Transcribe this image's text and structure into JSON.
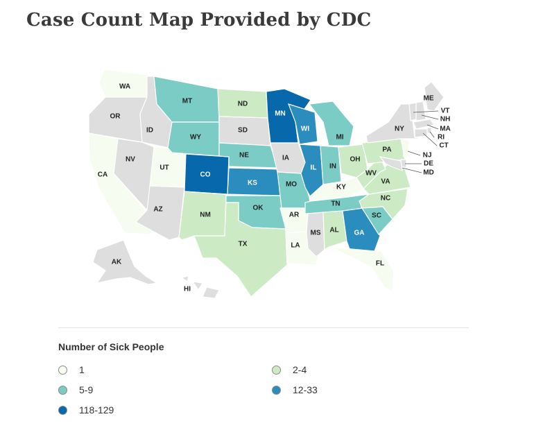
{
  "title": "Case Count Map Provided by CDC",
  "legend": {
    "title": "Number of Sick People",
    "items": [
      {
        "label": "1",
        "color": "#f7fcf0",
        "key": "c1"
      },
      {
        "label": "2-4",
        "color": "#ccebc5",
        "key": "c2"
      },
      {
        "label": "5-9",
        "color": "#7bccc4",
        "key": "c3"
      },
      {
        "label": "12-33",
        "color": "#2b8cbe",
        "key": "c4"
      },
      {
        "label": "118-129",
        "color": "#0868ac",
        "key": "c5"
      }
    ]
  },
  "no_data_color": "#dedede",
  "states": {
    "WA": {
      "label": "WA",
      "cls": "c1"
    },
    "OR": {
      "label": "OR",
      "cls": "none"
    },
    "CA": {
      "label": "CA",
      "cls": "c1"
    },
    "ID": {
      "label": "ID",
      "cls": "none"
    },
    "NV": {
      "label": "NV",
      "cls": "none"
    },
    "UT": {
      "label": "UT",
      "cls": "c1"
    },
    "AZ": {
      "label": "AZ",
      "cls": "none"
    },
    "MT": {
      "label": "MT",
      "cls": "c3"
    },
    "WY": {
      "label": "WY",
      "cls": "c3"
    },
    "CO": {
      "label": "CO",
      "cls": "c5"
    },
    "NM": {
      "label": "NM",
      "cls": "c2"
    },
    "ND": {
      "label": "ND",
      "cls": "c2"
    },
    "SD": {
      "label": "SD",
      "cls": "none"
    },
    "NE": {
      "label": "NE",
      "cls": "c3"
    },
    "KS": {
      "label": "KS",
      "cls": "c4"
    },
    "OK": {
      "label": "OK",
      "cls": "c3"
    },
    "TX": {
      "label": "TX",
      "cls": "c2"
    },
    "MN": {
      "label": "MN",
      "cls": "c5"
    },
    "IA": {
      "label": "IA",
      "cls": "none"
    },
    "MO": {
      "label": "MO",
      "cls": "c3"
    },
    "AR": {
      "label": "AR",
      "cls": "c1"
    },
    "LA": {
      "label": "LA",
      "cls": "c1"
    },
    "WI": {
      "label": "WI",
      "cls": "c4"
    },
    "IL": {
      "label": "IL",
      "cls": "c4"
    },
    "MI": {
      "label": "MI",
      "cls": "c3"
    },
    "IN": {
      "label": "IN",
      "cls": "c3"
    },
    "OH": {
      "label": "OH",
      "cls": "c2"
    },
    "KY": {
      "label": "KY",
      "cls": "c1"
    },
    "TN": {
      "label": "TN",
      "cls": "c3"
    },
    "MS": {
      "label": "MS",
      "cls": "none"
    },
    "AL": {
      "label": "AL",
      "cls": "c2"
    },
    "GA": {
      "label": "GA",
      "cls": "c4"
    },
    "FL": {
      "label": "FL",
      "cls": "c1"
    },
    "SC": {
      "label": "SC",
      "cls": "c3"
    },
    "NC": {
      "label": "NC",
      "cls": "c2"
    },
    "VA": {
      "label": "VA",
      "cls": "c2"
    },
    "WV": {
      "label": "WV",
      "cls": "c2"
    },
    "PA": {
      "label": "PA",
      "cls": "c2"
    },
    "NY": {
      "label": "NY",
      "cls": "none"
    },
    "ME": {
      "label": "ME",
      "cls": "none"
    },
    "VT": {
      "label": "VT",
      "cls": "none"
    },
    "NH": {
      "label": "NH",
      "cls": "none"
    },
    "MA": {
      "label": "MA",
      "cls": "none"
    },
    "RI": {
      "label": "RI",
      "cls": "none"
    },
    "CT": {
      "label": "CT",
      "cls": "none"
    },
    "NJ": {
      "label": "NJ",
      "cls": "c1"
    },
    "DE": {
      "label": "DE",
      "cls": "none"
    },
    "MD": {
      "label": "MD",
      "cls": "none"
    },
    "AK": {
      "label": "AK",
      "cls": "none"
    },
    "HI": {
      "label": "HI",
      "cls": "none"
    }
  }
}
